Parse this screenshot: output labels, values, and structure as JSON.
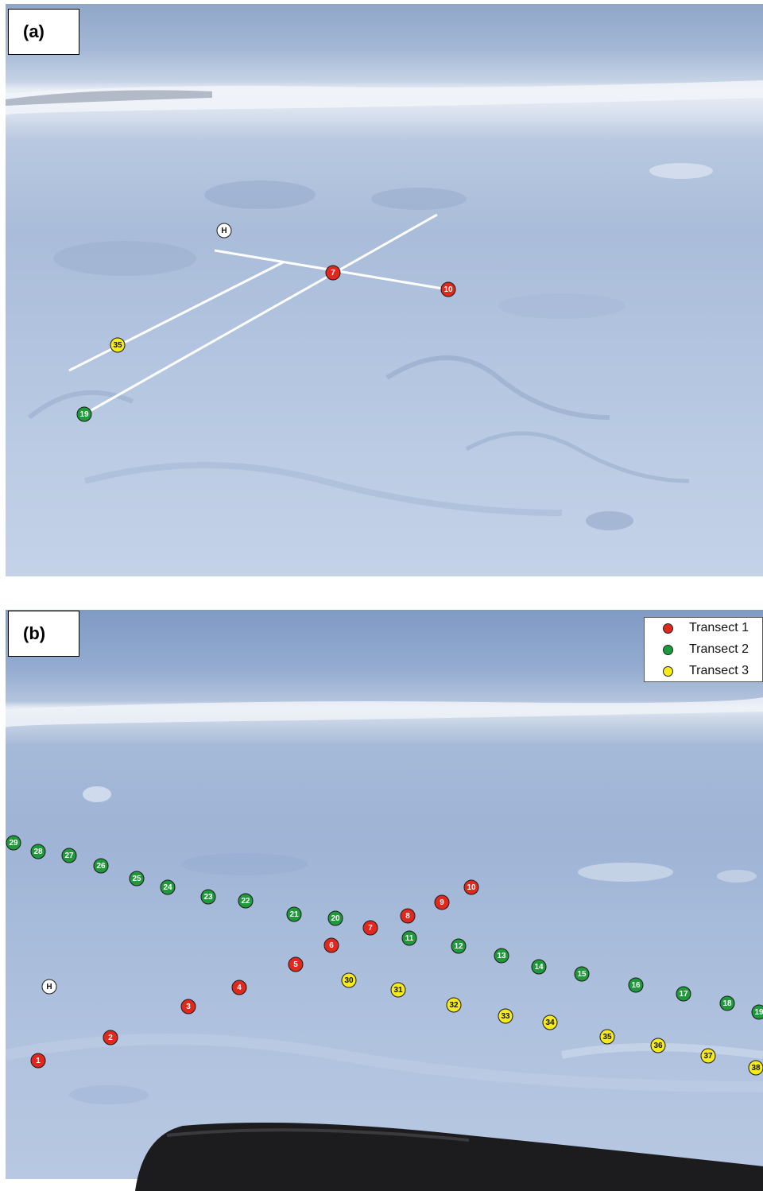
{
  "panels": [
    {
      "label": "(a)"
    },
    {
      "label": "(b)"
    }
  ],
  "colors": {
    "transect_1": "#e0291c",
    "transect_2": "#1f9a3a",
    "transect_3": "#f5ea1a",
    "helicopter": "#ffffff"
  },
  "legend": {
    "items": [
      {
        "label": "Transect 1",
        "color": "#e0291c"
      },
      {
        "label": "Transect 2",
        "color": "#1f9a3a"
      },
      {
        "label": "Transect 3",
        "color": "#f5ea1a"
      }
    ]
  },
  "panel_a_markers": [
    {
      "label": "H",
      "group": "helicopter"
    },
    {
      "label": "7",
      "group": "transect_1"
    },
    {
      "label": "10",
      "group": "transect_1"
    },
    {
      "label": "35",
      "group": "transect_3"
    },
    {
      "label": "19",
      "group": "transect_2"
    }
  ],
  "panel_b_markers": [
    {
      "label": "H",
      "group": "helicopter"
    },
    {
      "label": "1",
      "group": "transect_1"
    },
    {
      "label": "2",
      "group": "transect_1"
    },
    {
      "label": "3",
      "group": "transect_1"
    },
    {
      "label": "4",
      "group": "transect_1"
    },
    {
      "label": "5",
      "group": "transect_1"
    },
    {
      "label": "6",
      "group": "transect_1"
    },
    {
      "label": "7",
      "group": "transect_1"
    },
    {
      "label": "8",
      "group": "transect_1"
    },
    {
      "label": "9",
      "group": "transect_1"
    },
    {
      "label": "10",
      "group": "transect_1"
    },
    {
      "label": "11",
      "group": "transect_2"
    },
    {
      "label": "12",
      "group": "transect_2"
    },
    {
      "label": "13",
      "group": "transect_2"
    },
    {
      "label": "14",
      "group": "transect_2"
    },
    {
      "label": "15",
      "group": "transect_2"
    },
    {
      "label": "16",
      "group": "transect_2"
    },
    {
      "label": "17",
      "group": "transect_2"
    },
    {
      "label": "18",
      "group": "transect_2"
    },
    {
      "label": "19",
      "group": "transect_2"
    },
    {
      "label": "20",
      "group": "transect_2"
    },
    {
      "label": "21",
      "group": "transect_2"
    },
    {
      "label": "22",
      "group": "transect_2"
    },
    {
      "label": "23",
      "group": "transect_2"
    },
    {
      "label": "24",
      "group": "transect_2"
    },
    {
      "label": "25",
      "group": "transect_2"
    },
    {
      "label": "26",
      "group": "transect_2"
    },
    {
      "label": "27",
      "group": "transect_2"
    },
    {
      "label": "28",
      "group": "transect_2"
    },
    {
      "label": "29",
      "group": "transect_2"
    },
    {
      "label": "30",
      "group": "transect_3"
    },
    {
      "label": "31",
      "group": "transect_3"
    },
    {
      "label": "32",
      "group": "transect_3"
    },
    {
      "label": "33",
      "group": "transect_3"
    },
    {
      "label": "34",
      "group": "transect_3"
    },
    {
      "label": "35",
      "group": "transect_3"
    },
    {
      "label": "36",
      "group": "transect_3"
    },
    {
      "label": "37",
      "group": "transect_3"
    },
    {
      "label": "38",
      "group": "transect_3"
    }
  ]
}
